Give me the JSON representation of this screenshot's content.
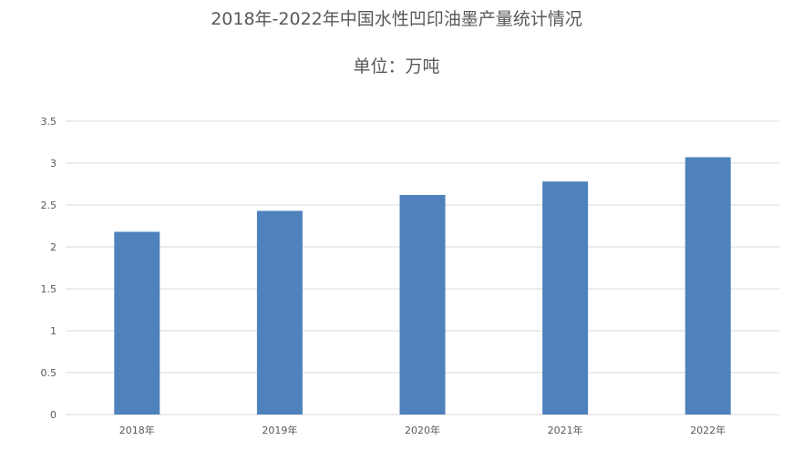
{
  "chart_data": {
    "type": "bar",
    "title": "2018年-2022年中国水性凹印油墨产量统计情况",
    "subtitle": "单位：万吨",
    "categories": [
      "2018年",
      "2019年",
      "2020年",
      "2021年",
      "2022年"
    ],
    "values": [
      2.18,
      2.43,
      2.62,
      2.78,
      3.07
    ],
    "ylim": [
      0,
      3.5
    ],
    "yticks": [
      "0",
      "0.5",
      "1",
      "1.5",
      "2",
      "2.5",
      "3",
      "3.5"
    ],
    "grid": true,
    "colors": {
      "bar": "#4f81bd",
      "grid": "#d9d9d9",
      "text": "#595959"
    }
  }
}
